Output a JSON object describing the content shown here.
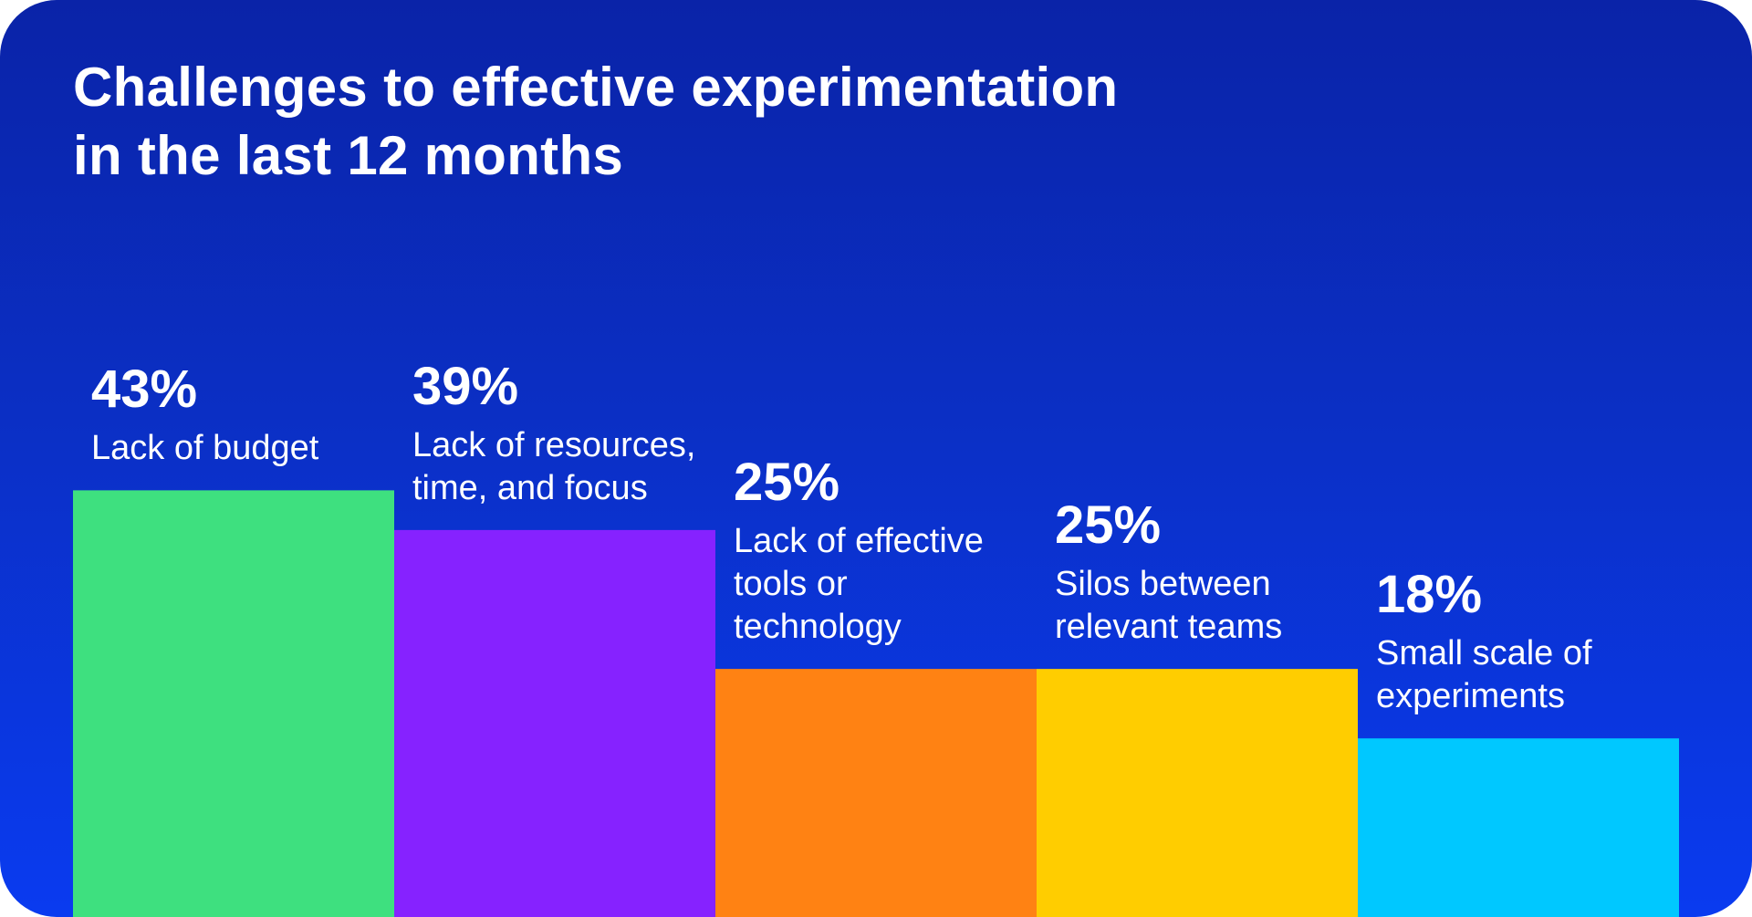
{
  "title_lines": [
    "Challenges to effective experimentation",
    "in the last 12 months"
  ],
  "colors": {
    "bg_top": "#0a23a8",
    "bg_bottom": "#0a3bf0",
    "bar_1": "#3ee07f",
    "bar_2": "#8622ff",
    "bar_3": "#ff8213",
    "bar_4": "#ffcd00",
    "bar_5": "#00c8ff",
    "text": "#ffffff"
  },
  "chart_data": {
    "type": "bar",
    "title": "Challenges to effective experimentation in the last 12 months",
    "categories": [
      "Lack of budget",
      "Lack of resources, time, and focus",
      "Lack of effective tools or technology",
      "Silos between relevant teams",
      "Small scale of experiments"
    ],
    "category_lines": [
      [
        "Lack of budget"
      ],
      [
        "Lack of resources,",
        "time, and focus"
      ],
      [
        "Lack of effective",
        "tools or",
        "technology"
      ],
      [
        "Silos between",
        "relevant teams"
      ],
      [
        "Small scale of",
        "experiments"
      ]
    ],
    "values": [
      43,
      39,
      25,
      25,
      18
    ],
    "value_labels": [
      "43%",
      "39%",
      "25%",
      "25%",
      "18%"
    ],
    "unit": "%",
    "xlabel": "",
    "ylabel": "",
    "ylim": [
      0,
      80
    ],
    "grid": false,
    "legend": "none"
  }
}
